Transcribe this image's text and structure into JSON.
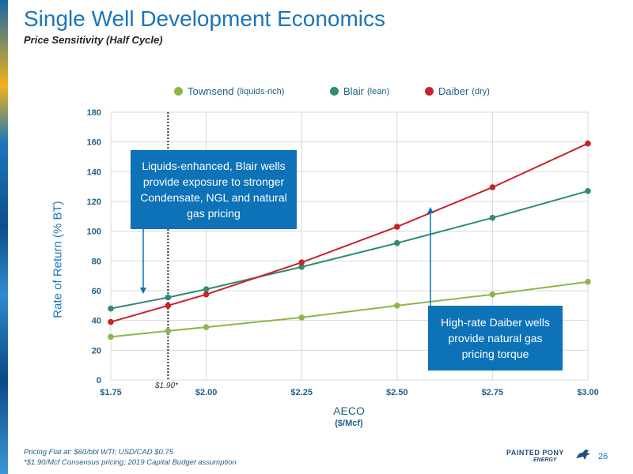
{
  "header": {
    "title": "Single Well Development Economics",
    "subtitle": "Price Sensitivity (Half Cycle)"
  },
  "callouts": {
    "blair": "Liquids-enhanced, Blair wells provide exposure to stronger Condensate, NGL and natural gas pricing",
    "daiber": "High-rate Daiber wells provide natural gas pricing torque"
  },
  "annotations": {
    "consensus_marker": "$1.90*"
  },
  "footer": {
    "note1": "Pricing Flat at: $60/bbl WTI; USD/CAD $0.75",
    "note2": "*$1.90/Mcf Consensus pricing; 2019 Capital Budget assumption",
    "logo_text": "PAINTED PONY",
    "logo_sub": "ENERGY",
    "page_number": "26"
  },
  "colors": {
    "townsend": "#8db64a",
    "blair": "#2f8c74",
    "daiber": "#c8222a",
    "title": "#1a75bb",
    "callout": "#0d72b8"
  },
  "chart_data": {
    "type": "line",
    "title": "",
    "xlabel": "AECO",
    "xunit": "($/Mcf)",
    "ylabel": "Rate of Return (% BT)",
    "x_ticks": [
      "$1.75",
      "$2.00",
      "$2.25",
      "$2.50",
      "$2.75",
      "$3.00"
    ],
    "x_tick_values": [
      1.75,
      2.0,
      2.25,
      2.5,
      2.75,
      3.0
    ],
    "y_ticks": [
      "0",
      "20",
      "40",
      "60",
      "80",
      "100",
      "120",
      "140",
      "160",
      "180"
    ],
    "xlim": [
      1.75,
      3.0
    ],
    "ylim": [
      0,
      180
    ],
    "grid": true,
    "legend_position": "top",
    "reference_line_x": 1.9,
    "series": [
      {
        "name": "Townsend",
        "note": "(liquids-rich)",
        "color": "#8db64a",
        "x": [
          1.75,
          1.9,
          2.0,
          2.25,
          2.5,
          2.75,
          3.0
        ],
        "y": [
          29,
          33,
          35.5,
          42,
          50,
          57.5,
          66
        ]
      },
      {
        "name": "Blair",
        "note": "(lean)",
        "color": "#2f8c74",
        "x": [
          1.75,
          1.9,
          2.0,
          2.25,
          2.5,
          2.75,
          3.0
        ],
        "y": [
          48,
          55.5,
          61,
          76,
          92,
          109,
          127
        ]
      },
      {
        "name": "Daiber",
        "note": "(dry)",
        "color": "#c8222a",
        "x": [
          1.75,
          1.9,
          2.0,
          2.25,
          2.5,
          2.75,
          3.0
        ],
        "y": [
          39,
          50,
          57.5,
          79,
          103,
          129.5,
          159
        ]
      }
    ]
  }
}
